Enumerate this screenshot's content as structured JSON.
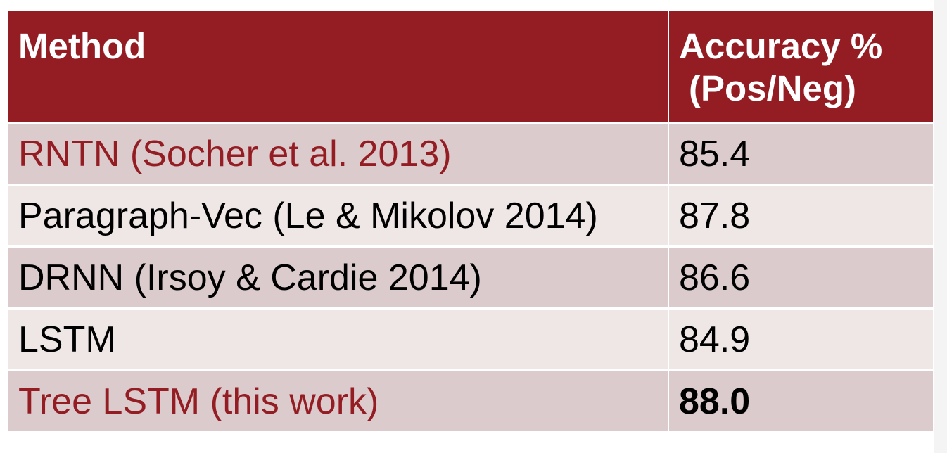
{
  "table": {
    "headers": {
      "method": "Method",
      "accuracy_line1": "Accuracy %",
      "accuracy_line2": "(Pos/Neg)"
    },
    "rows": [
      {
        "method": "RNTN (Socher et al. 2013)",
        "accuracy": "85.4"
      },
      {
        "method": "Paragraph-Vec (Le & Mikolov 2014)",
        "accuracy": "87.8"
      },
      {
        "method": "DRNN (Irsoy & Cardie 2014)",
        "accuracy": "86.6"
      },
      {
        "method": "LSTM",
        "accuracy": "84.9"
      },
      {
        "method": "Tree LSTM (this work)",
        "accuracy": "88.0"
      }
    ]
  },
  "colors": {
    "header_background": "#941d24",
    "highlight_text": "#941d24",
    "row_dark": "#dccbcc",
    "row_light": "#efe6e6"
  }
}
